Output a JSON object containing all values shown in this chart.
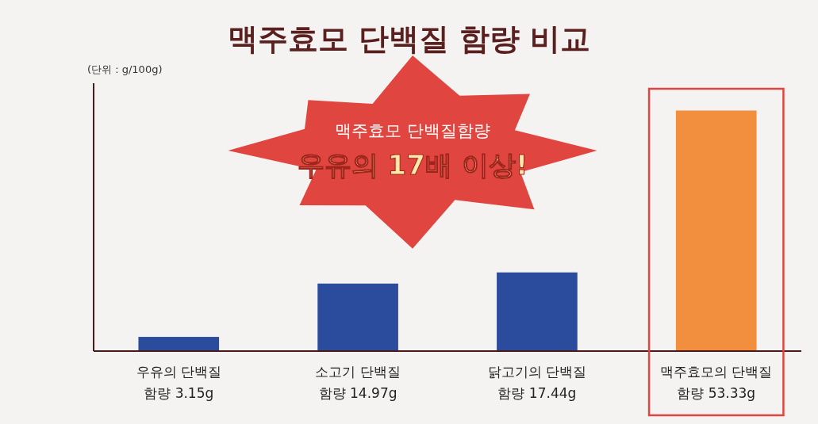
{
  "chart_data": {
    "type": "bar",
    "title": "맥주효모 단백질 함량 비교",
    "ylabel": "(단위 : g/100g)",
    "categories": [
      "우유의 단백질",
      "소고기 단백질",
      "닭고기의 단백질",
      "맥주효모의 단백질"
    ],
    "values": [
      3.15,
      14.97,
      17.44,
      53.33
    ],
    "colors": [
      "#2b4c9c",
      "#2b4c9c",
      "#2b4c9c",
      "#f28f3f"
    ],
    "value_labels": [
      "함량 3.15g",
      "함량 14.97g",
      "함량 17.44g",
      "함량 53.33g"
    ],
    "annotations": [
      "맥주효모 단백질함량",
      "우유의 17배 이상!"
    ]
  }
}
